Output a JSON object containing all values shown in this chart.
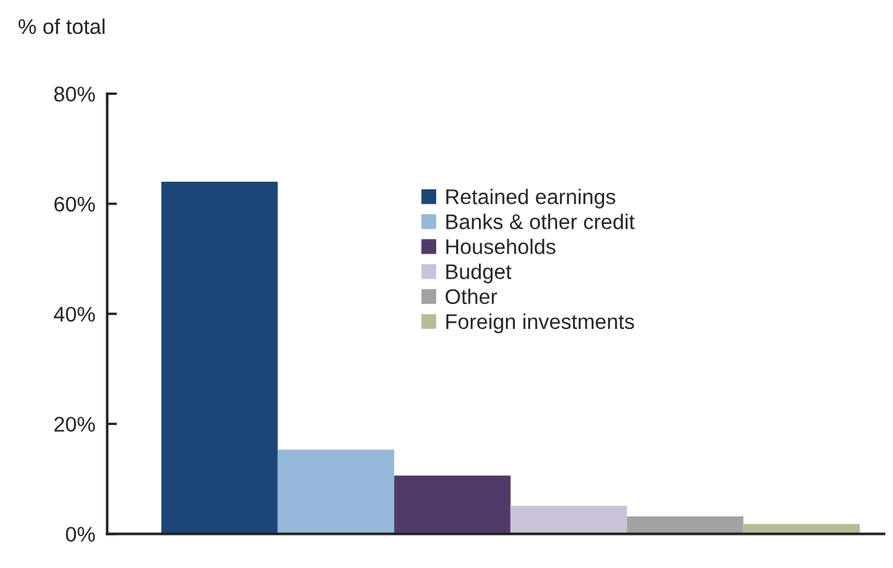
{
  "chart_data": {
    "type": "bar",
    "ylabel": "% of total",
    "categories": [
      null
    ],
    "series": [
      {
        "name": "Retained earnings",
        "color": "#1c4677",
        "values": [
          64
        ]
      },
      {
        "name": "Banks & other credit",
        "color": "#95b8d9",
        "values": [
          15.3
        ]
      },
      {
        "name": "Households",
        "color": "#523a68",
        "values": [
          10.6
        ]
      },
      {
        "name": "Budget",
        "color": "#cbc2da",
        "values": [
          5.1
        ]
      },
      {
        "name": "Other",
        "color": "#a2a2a3",
        "values": [
          3.2
        ]
      },
      {
        "name": "Foreign investments",
        "color": "#b3be98",
        "values": [
          1.8
        ]
      }
    ],
    "ylim": [
      0,
      80
    ],
    "yticks": [
      {
        "value": 0,
        "label": "0%"
      },
      {
        "value": 20,
        "label": "20%"
      },
      {
        "value": 40,
        "label": "40%"
      },
      {
        "value": 60,
        "label": "60%"
      },
      {
        "value": 80,
        "label": "80%"
      }
    ],
    "tick_labels": "y",
    "grid": false,
    "legend": "right"
  }
}
